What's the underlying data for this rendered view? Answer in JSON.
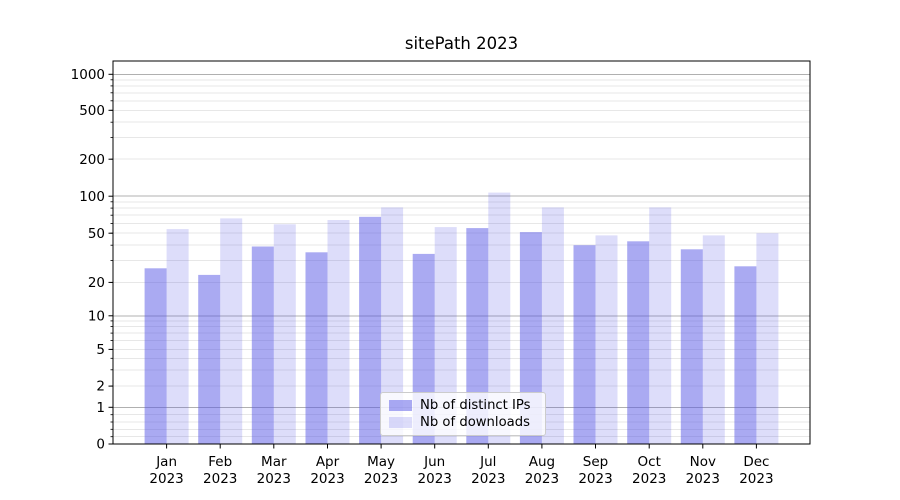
{
  "chart_data": {
    "type": "bar",
    "title": "sitePath 2023",
    "categories": [
      "Jan",
      "Feb",
      "Mar",
      "Apr",
      "May",
      "Jun",
      "Jul",
      "Aug",
      "Sep",
      "Oct",
      "Nov",
      "Dec"
    ],
    "x_year_label": "2023",
    "series": [
      {
        "name": "Nb of distinct IPs",
        "base_color": "#5555e6",
        "alpha": 0.5,
        "rendered_color": "#aaaaf2",
        "values": [
          26,
          23,
          39,
          35,
          68,
          34,
          55,
          51,
          40,
          43,
          37,
          27
        ]
      },
      {
        "name": "Nb of downloads",
        "base_color": "#5555e6",
        "alpha": 0.2,
        "rendered_color": "#ddddfa",
        "values": [
          54,
          66,
          59,
          64,
          81,
          56,
          107,
          81,
          48,
          81,
          48,
          50
        ]
      }
    ],
    "y_ticks": [
      0,
      1,
      2,
      5,
      10,
      20,
      50,
      100,
      200,
      500,
      1000
    ],
    "y_scale": "symlog",
    "ylim": [
      0,
      1290
    ],
    "grid": true,
    "major_grid_values": [
      1,
      10,
      100,
      1000
    ],
    "major_grid_color": "#b0b0b0",
    "minor_grid_color": "#e7e7e7",
    "axis_color": "#000000",
    "legend_position": "lower center"
  }
}
